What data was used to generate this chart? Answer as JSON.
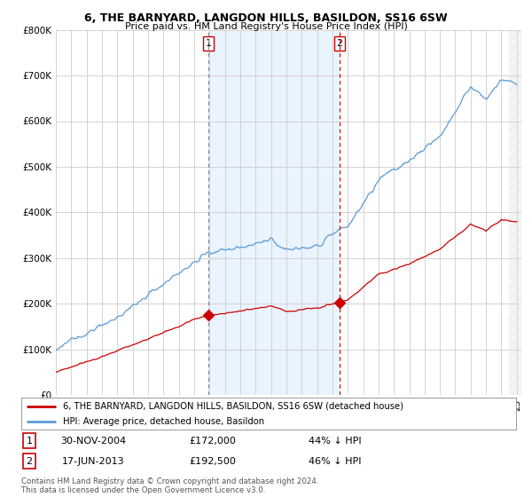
{
  "title": "6, THE BARNYARD, LANGDON HILLS, BASILDON, SS16 6SW",
  "subtitle": "Price paid vs. HM Land Registry's House Price Index (HPI)",
  "legend_line1": "6, THE BARNYARD, LANGDON HILLS, BASILDON, SS16 6SW (detached house)",
  "legend_line2": "HPI: Average price, detached house, Basildon",
  "sale1_date": "30-NOV-2004",
  "sale1_price": "£172,000",
  "sale1_hpi": "44% ↓ HPI",
  "sale1_year": 2004.92,
  "sale2_date": "17-JUN-2013",
  "sale2_price": "£192,500",
  "sale2_hpi": "46% ↓ HPI",
  "sale2_year": 2013.46,
  "footnote": "Contains HM Land Registry data © Crown copyright and database right 2024.\nThis data is licensed under the Open Government Licence v3.0.",
  "hpi_color": "#5b9bd5",
  "hpi_fill": "#ddeeff",
  "sale_color": "#cc0000",
  "vline1_color": "#999999",
  "vline2_color": "#cc0000",
  "ylim_max": 800000,
  "background_color": "#ffffff",
  "sale1_value": 172000,
  "sale2_value": 192500
}
